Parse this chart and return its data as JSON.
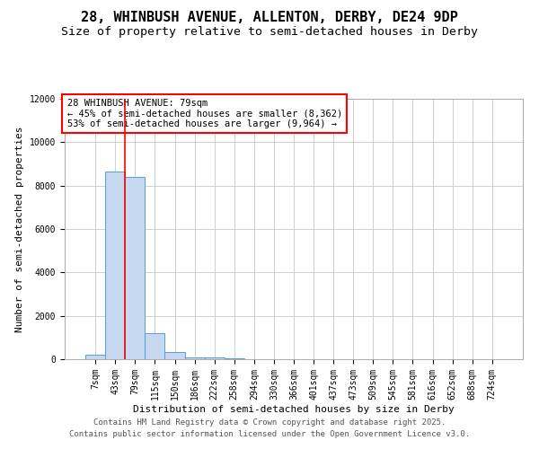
{
  "title": "28, WHINBUSH AVENUE, ALLENTON, DERBY, DE24 9DP",
  "subtitle": "Size of property relative to semi-detached houses in Derby",
  "xlabel": "Distribution of semi-detached houses by size in Derby",
  "ylabel": "Number of semi-detached properties",
  "footer_line1": "Contains HM Land Registry data © Crown copyright and database right 2025.",
  "footer_line2": "Contains public sector information licensed under the Open Government Licence v3.0.",
  "annotation_line1": "28 WHINBUSH AVENUE: 79sqm",
  "annotation_line2": "← 45% of semi-detached houses are smaller (8,362)",
  "annotation_line3": "53% of semi-detached houses are larger (9,964) →",
  "categories": [
    "7sqm",
    "43sqm",
    "79sqm",
    "115sqm",
    "150sqm",
    "186sqm",
    "222sqm",
    "258sqm",
    "294sqm",
    "330sqm",
    "366sqm",
    "401sqm",
    "437sqm",
    "473sqm",
    "509sqm",
    "545sqm",
    "581sqm",
    "616sqm",
    "652sqm",
    "688sqm",
    "724sqm"
  ],
  "values": [
    200,
    8650,
    8400,
    1200,
    340,
    100,
    100,
    50,
    0,
    0,
    0,
    0,
    0,
    0,
    0,
    0,
    0,
    0,
    0,
    0,
    0
  ],
  "bar_color": "#c5d8f0",
  "bar_edge_color": "#5b9bd5",
  "red_line_index": 1.5,
  "ylim": [
    0,
    12000
  ],
  "yticks": [
    0,
    2000,
    4000,
    6000,
    8000,
    10000,
    12000
  ],
  "background_color": "#ffffff",
  "grid_color": "#c8c8c8",
  "title_fontsize": 11,
  "subtitle_fontsize": 9.5,
  "axis_label_fontsize": 8,
  "tick_fontsize": 7,
  "footer_fontsize": 6.5,
  "annotation_fontsize": 7.5
}
